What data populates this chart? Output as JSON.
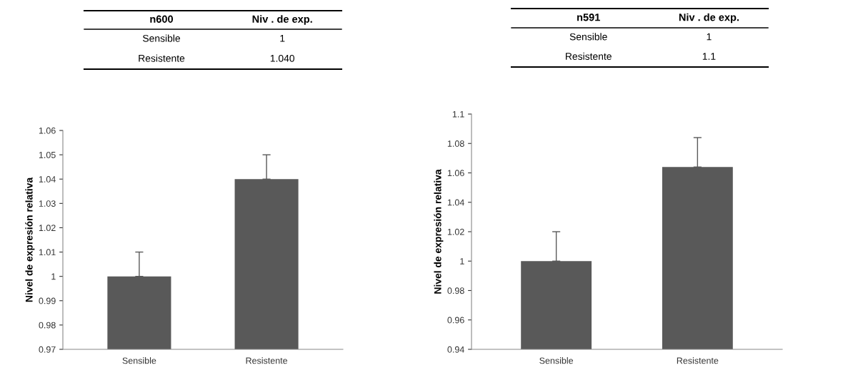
{
  "chart_data": [
    {
      "type": "bar",
      "ylabel": "Nivel de expresión relativa",
      "annotations": [
        "n600",
        "Niv . de exp.",
        "Sensible",
        "1",
        "Resistente",
        "1.040"
      ],
      "categories": [
        "Sensible",
        "Resistente"
      ],
      "values": [
        1,
        1.04
      ],
      "errors": [
        [
          1,
          1.01
        ],
        [
          1.04,
          1.05
        ]
      ],
      "color": "#595959",
      "ylim": [
        0.97,
        1.06
      ],
      "yticks": [
        0.97,
        0.98,
        0.99,
        1,
        1.01,
        1.02,
        1.03,
        1.04,
        1.05,
        1.06
      ],
      "grid": false,
      "legend": false
    },
    {
      "type": "bar",
      "ylabel": "Nivel de expresión relativa",
      "annotations": [
        "n591",
        "Niv . de exp.",
        "Sensible",
        "1",
        "Resistente",
        "1.1"
      ],
      "categories": [
        "Sensible",
        "Resistente"
      ],
      "values": [
        1,
        1.064
      ],
      "errors": [
        [
          1,
          1.02
        ],
        [
          1.064,
          1.084
        ]
      ],
      "color": "#595959",
      "ylim": [
        0.94,
        1.1
      ],
      "yticks": [
        0.94,
        0.96,
        0.98,
        1,
        1.02,
        1.04,
        1.06,
        1.08,
        1.1
      ],
      "grid": false,
      "legend": false
    }
  ]
}
